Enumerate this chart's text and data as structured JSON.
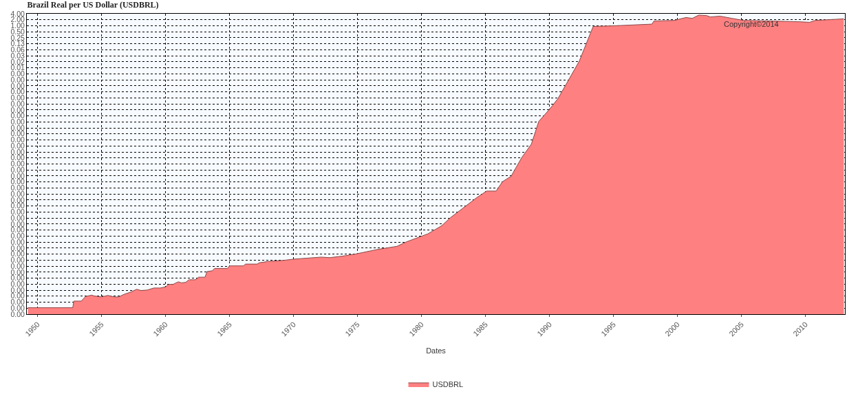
{
  "chart_data": {
    "type": "area",
    "title": "Brazil Real per US Dollar (USDBRL)",
    "xlabel": "Dates",
    "annotations": [
      "Copyright©2014"
    ],
    "x": [
      "1949-04",
      "1952-10",
      "1952-11",
      "1953-06",
      "1953-10",
      "1954-04",
      "1954-06",
      "1955-01",
      "1955-07",
      "1956-01",
      "1956-05",
      "1956-10",
      "1957-05",
      "1957-10",
      "1958-02",
      "1958-08",
      "1959-02",
      "1959-08",
      "1960-01",
      "1960-04",
      "1960-08",
      "1961-01",
      "1961-04",
      "1961-08",
      "1961-11",
      "1962-05",
      "1962-08",
      "1963-02",
      "1963-04",
      "1963-09",
      "1963-11",
      "1964-11",
      "1965-01",
      "1966-02",
      "1966-04",
      "1967-03",
      "1967-05",
      "1968-01",
      "1969-03",
      "1970-01",
      "1971-02",
      "1972-03",
      "1972-11",
      "1973-11",
      "1974-11",
      "1976-08",
      "1978-02",
      "1978-11",
      "1980-07",
      "1981-08",
      "1982-04",
      "1984-05",
      "1985-02",
      "1985-11",
      "1986-05",
      "1987-01",
      "1987-11",
      "1988-08",
      "1989-03",
      "1990-01",
      "1990-09",
      "1992-05",
      "1993-06",
      "1995-02",
      "1998-01",
      "1998-03",
      "1999-10",
      "2000-09",
      "2001-03",
      "2001-09",
      "2002-04",
      "2002-08",
      "2003-05",
      "2004-04",
      "2005-03",
      "2007-05",
      "2009-08",
      "2010-05",
      "2010-10",
      "2013-01"
    ],
    "series": [
      {
        "name": "USDBRL",
        "color": "#ff8080",
        "values": [
          7.5e-15,
          7.5e-15,
          1.61e-14,
          1.61e-14,
          2.75e-14,
          3.2e-14,
          2.92e-14,
          2.6e-14,
          3.09e-14,
          2.6e-14,
          2.6e-14,
          3.48e-14,
          4.68e-14,
          6.31e-14,
          5.45e-14,
          5.76e-14,
          7.29e-14,
          7.29e-14,
          8.21e-14,
          1.106e-13,
          1.106e-13,
          1.49e-13,
          1.32e-13,
          1.4e-13,
          1.89e-13,
          1.89e-13,
          2.54e-13,
          2.54e-13,
          4.87e-13,
          5.33e-13,
          6.99e-13,
          6.99e-13,
          9.35e-13,
          9.35e-13,
          1.15e-12,
          1.15e-12,
          1.34e-12,
          1.55e-12,
          1.75e-12,
          2.03e-12,
          2.29e-12,
          2.57e-12,
          2.42e-12,
          2.89e-12,
          3.66e-12,
          6.25e-12,
          8.9e-12,
          1.5e-11,
          3.76e-11,
          9.59e-11,
          2.39e-10,
          2.49e-09,
          5.23e-09,
          5.23e-09,
          1.55e-08,
          2.88e-08,
          2.5e-07,
          1.17e-06,
          1.62e-05,
          6.54e-05,
          0.000226,
          0.017,
          0.93,
          1.0,
          1.21,
          1.74,
          1.85,
          2.6,
          2.36,
          3.43,
          3.27,
          2.77,
          3.03,
          2.36,
          1.85,
          1.74,
          1.58,
          1.49,
          1.85,
          2.22
        ]
      }
    ],
    "log": true,
    "xlim": [
      "1949-03",
      "2013-02"
    ],
    "xticks": [
      "1950",
      "1955",
      "1960",
      "1965",
      "1970",
      "1975",
      "1980",
      "1985",
      "1990",
      "1995",
      "2000",
      "2005",
      "2010"
    ],
    "ylim": [
      3.552713678800501e-15,
      4
    ],
    "yticks": [
      {
        "value": 4,
        "label": "4.00"
      },
      {
        "value": 2,
        "label": "2.00"
      },
      {
        "value": 1,
        "label": "1.00"
      },
      {
        "value": 0.5,
        "label": "0.50"
      },
      {
        "value": 0.25,
        "label": "0.25"
      },
      {
        "value": 0.125,
        "label": "0.13"
      },
      {
        "value": 0.0625,
        "label": "0.06"
      },
      {
        "value": 0.03125,
        "label": "0.03"
      },
      {
        "value": 0.015625,
        "label": "0.02"
      },
      {
        "value": 0.0078125,
        "label": "0.01"
      },
      {
        "value": 0.00390625,
        "label": "0.00"
      },
      {
        "value": 0.001953125,
        "label": "0.00"
      },
      {
        "value": 0.0009765625,
        "label": "0.00"
      },
      {
        "value": 0.00048828125,
        "label": "0.00"
      },
      {
        "value": 0.000244140625,
        "label": "0.00"
      },
      {
        "value": 0.0001220703125,
        "label": "0.00"
      },
      {
        "value": 6.103515625e-05,
        "label": "0.00"
      },
      {
        "value": 3.0517578125e-05,
        "label": "0.00"
      },
      {
        "value": 1.52587890625e-05,
        "label": "0.00"
      },
      {
        "value": 7.62939453125e-06,
        "label": "0.00"
      },
      {
        "value": 3.814697265625e-06,
        "label": "0.00"
      },
      {
        "value": 1.9073486328125e-06,
        "label": "0.00"
      },
      {
        "value": 9.5367431640625e-07,
        "label": "0.00"
      },
      {
        "value": 4.76837158203125e-07,
        "label": "0.00"
      },
      {
        "value": 2.384185791015625e-07,
        "label": "0.00"
      },
      {
        "value": 1.1920928955078125e-07,
        "label": "0.00"
      },
      {
        "value": 5.960464477539063e-08,
        "label": "0.00"
      },
      {
        "value": 2.9802322387695312e-08,
        "label": "0.00"
      },
      {
        "value": 1.4901161193847656e-08,
        "label": "0.00"
      },
      {
        "value": 7.450580596923828e-09,
        "label": "0.00"
      },
      {
        "value": 3.725290298461914e-09,
        "label": "0.00"
      },
      {
        "value": 1.862645149230957e-09,
        "label": "0.00"
      },
      {
        "value": 9.313225746154785e-10,
        "label": "0.00"
      },
      {
        "value": 4.656612873077393e-10,
        "label": "0.00"
      },
      {
        "value": 2.3283064365386963e-10,
        "label": "0.00"
      },
      {
        "value": 1.1641532182693481e-10,
        "label": "0.00"
      },
      {
        "value": 5.820766091346741e-11,
        "label": "0.00"
      },
      {
        "value": 2.9103830456733704e-11,
        "label": "0.00"
      },
      {
        "value": 1.4551915228366852e-11,
        "label": "0.00"
      },
      {
        "value": 7.275957614183426e-12,
        "label": "0.00"
      },
      {
        "value": 3.637978807091713e-12,
        "label": "0.00"
      },
      {
        "value": 1.8189894035458565e-12,
        "label": "0.00"
      },
      {
        "value": 9.094947017729282e-13,
        "label": "0.00"
      },
      {
        "value": 4.547473508864641e-13,
        "label": "0.00"
      },
      {
        "value": 2.2737367544323206e-13,
        "label": "0.00"
      },
      {
        "value": 1.1368683772161603e-13,
        "label": "0.00"
      },
      {
        "value": 5.684341886080802e-14,
        "label": "0.00"
      },
      {
        "value": 2.842170943040401e-14,
        "label": "0.00"
      },
      {
        "value": 1.4210854715202004e-14,
        "label": "0.00"
      },
      {
        "value": 7.105427357601002e-15,
        "label": "0.00"
      },
      {
        "value": 3.552713678800501e-15,
        "label": "0.00"
      }
    ],
    "grid": true,
    "legend": "bottom"
  }
}
